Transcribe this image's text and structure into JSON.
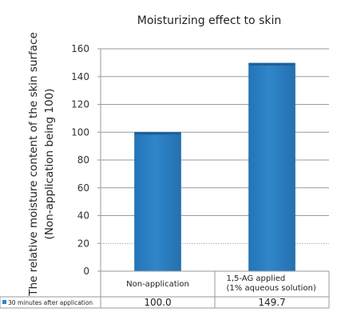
{
  "chart_data": {
    "type": "bar",
    "title": "Moisturizing effect to skin",
    "ylabel_line1": "The relative moisture content of the skin surface",
    "ylabel_line2": "(Non-application being 100)",
    "xlabel": "",
    "ylim": [
      0,
      160
    ],
    "yticks": [
      0,
      20,
      40,
      60,
      80,
      100,
      120,
      140,
      160
    ],
    "grid": true,
    "categories": [
      {
        "line1": "Non-application",
        "line2": ""
      },
      {
        "line1": "1,5-AG applied",
        "line2": "(1% aqueous solution)"
      }
    ],
    "series": [
      {
        "name": "30 minutes after application",
        "values": [
          100.0,
          149.7
        ],
        "value_labels": [
          "100.0",
          "149.7"
        ]
      }
    ],
    "legend_placement": "data-table",
    "bar_color": "#2f86c9"
  }
}
